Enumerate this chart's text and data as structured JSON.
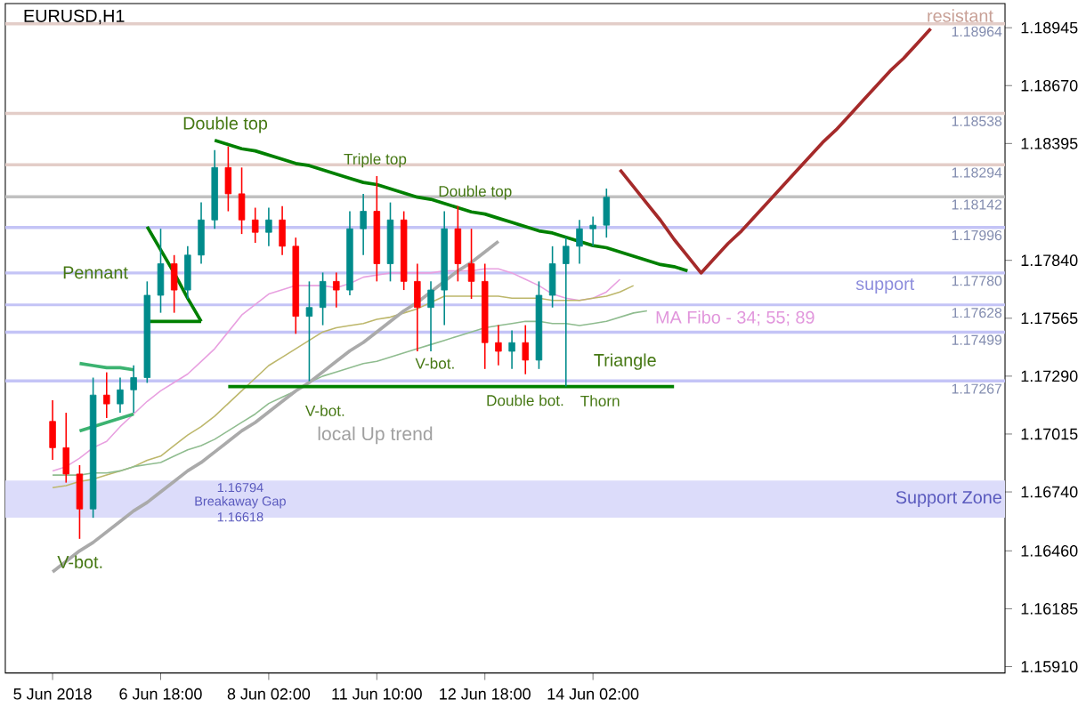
{
  "chart_data": {
    "type": "candlestick",
    "title": "EURUSD,H1",
    "categories": [
      "5 Jun 2018",
      null,
      null,
      null,
      null,
      null,
      null,
      null,
      "6 Jun 18:00",
      null,
      null,
      null,
      null,
      null,
      null,
      null,
      "8 Jun 02:00",
      null,
      null,
      null,
      null,
      null,
      null,
      null,
      "11 Jun 10:00",
      null,
      null,
      null,
      null,
      null,
      null,
      null,
      "12 Jun 18:00",
      null,
      null,
      null,
      null,
      null,
      null,
      null,
      "14 Jun 02:00",
      null,
      null,
      null,
      null,
      null,
      null,
      null,
      null,
      null,
      null,
      null,
      null,
      null,
      null,
      null,
      null,
      null,
      null,
      null,
      null,
      null,
      null,
      null,
      null,
      null,
      null,
      null,
      null,
      null,
      null
    ],
    "ohlc": [
      [
        1.17075,
        1.17175,
        1.16892,
        1.1695
      ],
      [
        1.1695,
        1.17116,
        1.16784,
        1.16825
      ],
      [
        1.16825,
        1.16867,
        1.16517,
        1.16659
      ],
      [
        1.16659,
        1.17283,
        1.16617,
        1.172
      ],
      [
        1.172,
        1.17308,
        1.17091,
        1.17158
      ],
      [
        1.17158,
        1.17283,
        1.17116,
        1.17225
      ],
      [
        1.17225,
        1.17341,
        1.17116,
        1.17283
      ],
      [
        1.17283,
        1.1774,
        1.17258,
        1.17674
      ],
      [
        1.17674,
        1.1799,
        1.17591,
        1.17824
      ],
      [
        1.17824,
        1.17865,
        1.17591,
        1.17699
      ],
      [
        1.17699,
        1.17907,
        1.17657,
        1.17865
      ],
      [
        1.17865,
        1.18115,
        1.17824,
        1.18032
      ],
      [
        1.18032,
        1.18364,
        1.1799,
        1.18281
      ],
      [
        1.18281,
        1.18381,
        1.18073,
        1.18156
      ],
      [
        1.18156,
        1.18281,
        1.17965,
        1.18032
      ],
      [
        1.18032,
        1.1809,
        1.17923,
        1.17973
      ],
      [
        1.17973,
        1.1809,
        1.17907,
        1.18032
      ],
      [
        1.18032,
        1.18098,
        1.17865,
        1.17907
      ],
      [
        1.17907,
        1.17948,
        1.17491,
        1.17574
      ],
      [
        1.17574,
        1.1774,
        1.17266,
        1.17616
      ],
      [
        1.17616,
        1.17782,
        1.17532,
        1.1774
      ],
      [
        1.1774,
        1.17782,
        1.17616,
        1.17699
      ],
      [
        1.17699,
        1.18073,
        1.17674,
        1.1799
      ],
      [
        1.1799,
        1.18156,
        1.17865,
        1.18073
      ],
      [
        1.18073,
        1.1824,
        1.1774,
        1.17824
      ],
      [
        1.17824,
        1.18115,
        1.1774,
        1.18032
      ],
      [
        1.18032,
        1.18073,
        1.17699,
        1.1774
      ],
      [
        1.1774,
        1.17824,
        1.17408,
        1.17616
      ],
      [
        1.17616,
        1.1774,
        1.17408,
        1.17699
      ],
      [
        1.17699,
        1.18073,
        1.17532,
        1.1799
      ],
      [
        1.1799,
        1.18098,
        1.1774,
        1.17824
      ],
      [
        1.17824,
        1.1799,
        1.17657,
        1.1774
      ],
      [
        1.1774,
        1.17824,
        1.17324,
        1.17449
      ],
      [
        1.17449,
        1.17532,
        1.17341,
        1.17408
      ],
      [
        1.17408,
        1.17507,
        1.17324,
        1.17449
      ],
      [
        1.17449,
        1.17532,
        1.17299,
        1.17366
      ],
      [
        1.17366,
        1.1774,
        1.17324,
        1.17674
      ],
      [
        1.17674,
        1.17907,
        1.17616,
        1.17824
      ],
      [
        1.17824,
        1.17948,
        1.17241,
        1.17907
      ],
      [
        1.17907,
        1.18032,
        1.17824,
        1.1799
      ],
      [
        1.1799,
        1.18048,
        1.17907,
        1.18007
      ],
      [
        1.18007,
        1.18181,
        1.17948,
        1.1814
      ],
      null,
      null,
      null,
      null,
      null,
      null,
      null,
      null,
      null,
      null,
      null,
      null,
      null,
      null,
      null,
      null,
      null,
      null,
      null,
      null,
      null,
      null,
      null,
      null,
      null,
      null,
      null,
      null,
      null
    ],
    "series": [
      {
        "type": "line",
        "color": "#e8a0e0",
        "values": [
          1.1684,
          1.1686,
          1.169,
          1.1695,
          1.1698,
          1.1705,
          1.1711,
          1.1717,
          1.1722,
          1.1726,
          1.173,
          1.1736,
          1.1742,
          1.175,
          1.1758,
          1.1763,
          1.1768,
          1.177,
          1.1772,
          1.1772,
          1.1772,
          1.1771,
          1.1773,
          1.1776,
          1.1777,
          1.1778,
          1.1778,
          1.1778,
          1.1778,
          1.1779,
          1.1779,
          1.1779,
          1.178,
          1.178,
          1.1778,
          1.1775,
          1.1772,
          1.1768,
          1.1766,
          1.1765,
          1.1766,
          1.1769,
          1.1775,
          null,
          null,
          null,
          null,
          null,
          null,
          null,
          null,
          null,
          null,
          null,
          null,
          null,
          null,
          null,
          null,
          null,
          null,
          null,
          null,
          null,
          null,
          null,
          null,
          null,
          null,
          null,
          null
        ]
      },
      {
        "type": "line",
        "color": "#bdb76b",
        "values": [
          1.1676,
          1.1677,
          1.1679,
          1.168,
          1.1682,
          1.1684,
          1.1686,
          1.1689,
          1.1691,
          1.1696,
          1.1701,
          1.1705,
          1.171,
          1.1716,
          1.1722,
          1.1728,
          1.1734,
          1.1738,
          1.1742,
          1.1746,
          1.175,
          1.1752,
          1.1753,
          1.1754,
          1.1756,
          1.1757,
          1.1759,
          1.1761,
          1.1764,
          1.1767,
          1.1767,
          1.1767,
          1.1767,
          1.1767,
          1.1766,
          1.1766,
          1.1766,
          1.1765,
          1.1765,
          1.1765,
          1.1766,
          1.1767,
          1.1769,
          1.1772,
          null,
          null,
          null,
          null,
          null,
          null,
          null,
          null,
          null,
          null,
          null,
          null,
          null,
          null,
          null,
          null,
          null,
          null,
          null,
          null,
          null,
          null,
          null,
          null,
          null,
          null,
          null
        ]
      },
      {
        "type": "line",
        "color": "#8fbc8f",
        "values": [
          1.1682,
          1.1682,
          1.1682,
          1.1683,
          1.1683,
          1.1684,
          1.1686,
          1.1687,
          1.1688,
          1.1691,
          1.1694,
          1.1696,
          1.1699,
          1.1703,
          1.1707,
          1.1711,
          1.1716,
          1.1719,
          1.1722,
          1.1726,
          1.1729,
          1.1731,
          1.1733,
          1.1735,
          1.1736,
          1.1738,
          1.174,
          1.1742,
          1.1744,
          1.1746,
          1.1748,
          1.175,
          1.1752,
          1.1753,
          1.1754,
          1.1755,
          1.1755,
          1.1754,
          1.1754,
          1.1753,
          1.1754,
          1.1755,
          1.1757,
          1.1759,
          1.176,
          null,
          null,
          null,
          null,
          null,
          null,
          null,
          null,
          null,
          null,
          null,
          null,
          null,
          null,
          null,
          null,
          null,
          null,
          null,
          null,
          null,
          null,
          null,
          null,
          null,
          null
        ]
      },
      {
        "type": "line",
        "color": "#aaaaaa",
        "values": [
          1.1636,
          1.1641,
          1.1646,
          1.165,
          1.1655,
          1.166,
          1.1665,
          1.1669,
          1.1674,
          1.1679,
          1.1684,
          1.1688,
          1.1693,
          1.1698,
          1.1703,
          1.1707,
          1.1712,
          1.1717,
          1.1722,
          1.1726,
          1.1731,
          1.1736,
          1.1741,
          1.1745,
          1.175,
          1.1755,
          1.176,
          1.1764,
          1.1769,
          1.1774,
          1.1779,
          1.1783,
          1.1788,
          1.1793,
          null,
          null,
          null,
          null,
          null,
          null,
          null,
          null,
          null,
          null,
          null,
          null,
          null,
          null,
          null,
          null,
          null,
          null,
          null,
          null,
          null,
          null,
          null,
          null,
          null,
          null,
          null,
          null,
          null,
          null,
          null,
          null,
          null,
          null,
          null,
          null,
          null
        ]
      },
      {
        "type": "line",
        "color": "#008000",
        "values": [
          null,
          null,
          null,
          null,
          null,
          null,
          null,
          null,
          null,
          null,
          null,
          null,
          1.1841,
          1.1839,
          1.1837,
          1.1836,
          1.1834,
          1.1832,
          1.183,
          1.1829,
          1.1827,
          1.1825,
          1.1823,
          1.1821,
          1.182,
          1.1818,
          1.1816,
          1.1814,
          1.1813,
          1.1811,
          1.1809,
          1.1807,
          1.1806,
          1.1804,
          1.1802,
          1.18,
          1.1798,
          1.1797,
          1.1795,
          1.1793,
          1.1791,
          1.179,
          1.1788,
          1.1786,
          1.1784,
          1.1782,
          1.1781,
          1.1779,
          null,
          null,
          null,
          null,
          null,
          null,
          null,
          null,
          null,
          null,
          null,
          null,
          null,
          null,
          null,
          null,
          null,
          null,
          null,
          null,
          null,
          null,
          null
        ]
      },
      {
        "type": "line",
        "color": "#008000",
        "values": [
          null,
          null,
          null,
          null,
          null,
          null,
          null,
          null,
          null,
          null,
          null,
          null,
          null,
          1.1724,
          1.1724,
          1.1724,
          1.1724,
          1.1724,
          1.1724,
          1.1724,
          1.1724,
          1.1724,
          1.1724,
          1.1724,
          1.1724,
          1.1724,
          1.1724,
          1.1724,
          1.1724,
          1.1724,
          1.1724,
          1.1724,
          1.1724,
          1.1724,
          1.1724,
          1.1724,
          1.1724,
          1.1724,
          1.1724,
          1.1724,
          1.1724,
          1.1724,
          1.1724,
          1.1724,
          1.1724,
          1.1724,
          1.1724,
          null,
          null,
          null,
          null,
          null,
          null,
          null,
          null,
          null,
          null,
          null,
          null,
          null,
          null,
          null,
          null,
          null,
          null,
          null,
          null,
          null,
          null,
          null,
          null
        ]
      },
      {
        "type": "line",
        "color": "#008000",
        "values": [
          null,
          null,
          null,
          null,
          null,
          null,
          null,
          1.18,
          1.1789,
          1.1778,
          1.1766,
          1.1755,
          null,
          null,
          null,
          null,
          null,
          null,
          null,
          null,
          null,
          null,
          null,
          null,
          null,
          null,
          null,
          null,
          null,
          null,
          null,
          null,
          null,
          null,
          null,
          null,
          null,
          null,
          null,
          null,
          null,
          null,
          null,
          null,
          null,
          null,
          null,
          null,
          null,
          null,
          null,
          null,
          null,
          null,
          null,
          null,
          null,
          null,
          null,
          null,
          null,
          null,
          null,
          null,
          null,
          null,
          null,
          null,
          null,
          null,
          null
        ]
      },
      {
        "type": "line",
        "color": "#008000",
        "values": [
          null,
          null,
          null,
          null,
          null,
          null,
          null,
          1.1755,
          1.1755,
          1.1755,
          1.1755,
          1.1755,
          null,
          null,
          null,
          null,
          null,
          null,
          null,
          null,
          null,
          null,
          null,
          null,
          null,
          null,
          null,
          null,
          null,
          null,
          null,
          null,
          null,
          null,
          null,
          null,
          null,
          null,
          null,
          null,
          null,
          null,
          null,
          null,
          null,
          null,
          null,
          null,
          null,
          null,
          null,
          null,
          null,
          null,
          null,
          null,
          null,
          null,
          null,
          null,
          null,
          null,
          null,
          null,
          null,
          null,
          null,
          null,
          null,
          null,
          null
        ]
      },
      {
        "type": "line",
        "color": "#3cb371",
        "values": [
          null,
          null,
          1.1735,
          1.1734,
          1.1733,
          1.1733,
          1.1732,
          null,
          null,
          null,
          null,
          null,
          null,
          null,
          null,
          null,
          null,
          null,
          null,
          null,
          null,
          null,
          null,
          null,
          null,
          null,
          null,
          null,
          null,
          null,
          null,
          null,
          null,
          null,
          null,
          null,
          null,
          null,
          null,
          null,
          null,
          null,
          null,
          null,
          null,
          null,
          null,
          null,
          null,
          null,
          null,
          null,
          null,
          null,
          null,
          null,
          null,
          null,
          null,
          null,
          null,
          null,
          null,
          null,
          null,
          null,
          null,
          null,
          null,
          null,
          null
        ]
      },
      {
        "type": "line",
        "color": "#3cb371",
        "values": [
          null,
          null,
          1.1703,
          1.1705,
          1.1707,
          1.1709,
          1.1711,
          null,
          null,
          null,
          null,
          null,
          null,
          null,
          null,
          null,
          null,
          null,
          null,
          null,
          null,
          null,
          null,
          null,
          null,
          null,
          null,
          null,
          null,
          null,
          null,
          null,
          null,
          null,
          null,
          null,
          null,
          null,
          null,
          null,
          null,
          null,
          null,
          null,
          null,
          null,
          null,
          null,
          null,
          null,
          null,
          null,
          null,
          null,
          null,
          null,
          null,
          null,
          null,
          null,
          null,
          null,
          null,
          null,
          null,
          null,
          null,
          null,
          null,
          null,
          null
        ]
      },
      {
        "type": "line",
        "color": "#a52a2a",
        "values": [
          null,
          null,
          null,
          null,
          null,
          null,
          null,
          null,
          null,
          null,
          null,
          null,
          null,
          null,
          null,
          null,
          null,
          null,
          null,
          null,
          null,
          null,
          null,
          null,
          null,
          null,
          null,
          null,
          null,
          null,
          null,
          null,
          null,
          null,
          null,
          null,
          null,
          null,
          null,
          null,
          null,
          null,
          1.1827,
          1.1819,
          1.1811,
          1.1803,
          1.1794,
          1.1786,
          1.1778,
          1.1785,
          1.1792,
          1.1798,
          1.1805,
          1.1812,
          1.1819,
          1.1826,
          1.1833,
          1.184,
          1.1846,
          1.1853,
          1.186,
          1.1867,
          1.1874,
          1.188,
          1.1887,
          1.1894,
          null,
          null,
          null,
          null,
          null
        ]
      }
    ],
    "ylim": [
      1.1588,
      1.1906
    ],
    "yticks": [
      {
        "value": 1.1591,
        "label": "1.15910"
      },
      {
        "value": 1.16185,
        "label": "1.16185"
      },
      {
        "value": 1.1646,
        "label": "1.16460"
      },
      {
        "value": 1.1674,
        "label": "1.16740"
      },
      {
        "value": 1.17015,
        "label": "1.17015"
      },
      {
        "value": 1.1729,
        "label": "1.17290"
      },
      {
        "value": 1.17565,
        "label": "1.17565"
      },
      {
        "value": 1.1784,
        "label": "1.17840"
      },
      {
        "value": 1.18395,
        "label": "1.18395"
      },
      {
        "value": 1.1867,
        "label": "1.18670"
      },
      {
        "value": 1.18945,
        "label": "1.18945"
      }
    ],
    "ref_lines": [
      {
        "axis": "y",
        "value": 1.18964,
        "label": "1.18964",
        "color": "#e3cdc8"
      },
      {
        "axis": "y",
        "value": 1.18538,
        "label": "1.18538",
        "color": "#e3cdc8"
      },
      {
        "axis": "y",
        "value": 1.18294,
        "label": "1.18294",
        "color": "#e3cdc8"
      },
      {
        "axis": "y",
        "value": 1.18142,
        "label": "1.18142",
        "color": "#c0c0c0"
      },
      {
        "axis": "y",
        "value": 1.17996,
        "label": "1.17996",
        "color": "#c4c4f6"
      },
      {
        "axis": "y",
        "value": 1.1778,
        "label": "1.17780",
        "color": "#c4c4f6"
      },
      {
        "axis": "y",
        "value": 1.17628,
        "label": "1.17628",
        "color": "#c4c4f6"
      },
      {
        "axis": "y",
        "value": 1.17499,
        "label": "1.17499",
        "color": "#c4c4f6"
      },
      {
        "axis": "y",
        "value": 1.17267,
        "label": "1.17267",
        "color": "#c4c4f6"
      }
    ],
    "bands": [
      {
        "axis": "y",
        "from": 1.16618,
        "to": 1.16794,
        "label": "Support Zone",
        "color": "#dcdcfa"
      }
    ],
    "annotations": [
      {
        "text": "Double top",
        "y": 1.18381
      },
      "Pennant",
      {
        "text": "Triple top",
        "y": 1.1824
      },
      {
        "text": "Double top",
        "y": 1.18098
      },
      "V-bot.",
      "V-bot.",
      {
        "text": "V-bot.",
        "y": 1.17408
      },
      {
        "text": "Double bot.",
        "y": 1.17299
      },
      {
        "text": "Thorn",
        "y": 1.17241
      },
      "Triangle",
      "local Up trend",
      "MA Fibo - 34; 55; 89",
      "support",
      {
        "text": "resistant",
        "y": 1.18964
      },
      "1.16794",
      "Breakaway Gap",
      "1.16618"
    ]
  }
}
